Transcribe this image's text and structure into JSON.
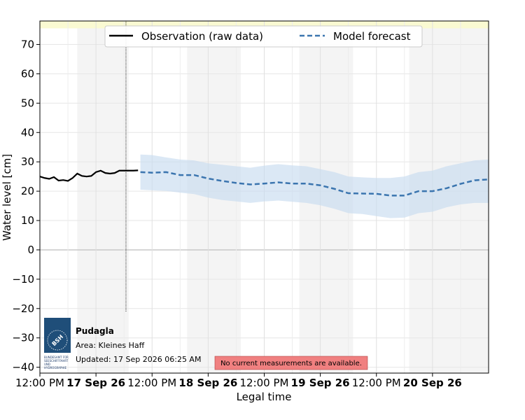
{
  "chart_data": {
    "type": "line",
    "xlabel": "Legal time",
    "ylabel": "Water level [cm]",
    "ylim": [
      -42,
      78
    ],
    "xlim": [
      "2026-09-16 12:00",
      "2026-09-20 12:00"
    ],
    "yticks": [
      -40,
      -30,
      -20,
      -10,
      0,
      10,
      20,
      30,
      40,
      50,
      60,
      70
    ],
    "xticks": [
      {
        "t": "2026-09-16 12:00",
        "label": "12:00 PM",
        "bold": false
      },
      {
        "t": "2026-09-17 00:00",
        "label": "17 Sep 26",
        "bold": true
      },
      {
        "t": "2026-09-17 12:00",
        "label": "12:00 PM",
        "bold": false
      },
      {
        "t": "2026-09-18 00:00",
        "label": "18 Sep 26",
        "bold": true
      },
      {
        "t": "2026-09-18 12:00",
        "label": "12:00 PM",
        "bold": false
      },
      {
        "t": "2026-09-19 00:00",
        "label": "19 Sep 26",
        "bold": true
      },
      {
        "t": "2026-09-19 12:00",
        "label": "12:00 PM",
        "bold": false
      },
      {
        "t": "2026-09-20 00:00",
        "label": "20 Sep 26",
        "bold": true
      }
    ],
    "minor_grid": [
      "2026-09-16 18:00",
      "2026-09-17 06:00",
      "2026-09-17 18:00",
      "2026-09-18 06:00",
      "2026-09-18 18:00",
      "2026-09-19 06:00",
      "2026-09-19 18:00",
      "2026-09-20 06:00"
    ],
    "night_bands": [
      {
        "start": "2026-09-16 12:00",
        "end": "2026-09-16 20:00",
        "shade": "#ffffff"
      },
      {
        "start": "2026-09-16 20:00",
        "end": "2026-09-17 07:00",
        "shade": "#f4f4f4"
      },
      {
        "start": "2026-09-17 19:30",
        "end": "2026-09-18 07:00",
        "shade": "#f4f4f4"
      },
      {
        "start": "2026-09-18 19:30",
        "end": "2026-09-19 07:00",
        "shade": "#f4f4f4"
      },
      {
        "start": "2026-09-19 19:00",
        "end": "2026-09-20 12:00",
        "shade": "#f4f4f4"
      }
    ],
    "top_band": {
      "y_from": 75.5,
      "y_to": 78,
      "color": "#fafad2"
    },
    "now_marker": "2026-09-17 06:25",
    "grid": true,
    "legend_position": "top-center",
    "series": [
      {
        "name": "Observation (raw data)",
        "style": "solid",
        "color": "#000000",
        "points": [
          [
            "2026-09-16 12:00",
            25
          ],
          [
            "2026-09-16 13:00",
            24.5
          ],
          [
            "2026-09-16 14:00",
            24.2
          ],
          [
            "2026-09-16 15:00",
            24.8
          ],
          [
            "2026-09-16 16:00",
            23.6
          ],
          [
            "2026-09-16 17:00",
            23.8
          ],
          [
            "2026-09-16 18:00",
            23.5
          ],
          [
            "2026-09-16 19:00",
            24.5
          ],
          [
            "2026-09-16 20:00",
            26
          ],
          [
            "2026-09-16 21:00",
            25.2
          ],
          [
            "2026-09-16 22:00",
            25
          ],
          [
            "2026-09-16 23:00",
            25.2
          ],
          [
            "2026-09-17 00:00",
            26.5
          ],
          [
            "2026-09-17 01:00",
            27
          ],
          [
            "2026-09-17 02:00",
            26.2
          ],
          [
            "2026-09-17 03:00",
            26
          ],
          [
            "2026-09-17 04:00",
            26.2
          ],
          [
            "2026-09-17 05:00",
            27
          ],
          [
            "2026-09-17 06:00",
            27
          ],
          [
            "2026-09-17 07:00",
            27
          ],
          [
            "2026-09-17 08:00",
            27
          ],
          [
            "2026-09-17 09:00",
            27.1
          ]
        ]
      },
      {
        "name": "Model forecast",
        "style": "dashed",
        "color": "#3b75af",
        "band_color": "#c7dcef",
        "points": [
          [
            "2026-09-17 09:30",
            26.5,
            20.5,
            32.5
          ],
          [
            "2026-09-17 12:00",
            26.3,
            20.3,
            32.3
          ],
          [
            "2026-09-17 15:00",
            26.5,
            20.1,
            31.5
          ],
          [
            "2026-09-17 18:00",
            25.5,
            19.5,
            30.8
          ],
          [
            "2026-09-17 21:00",
            25.5,
            19,
            30.5
          ],
          [
            "2026-09-18 00:00",
            24.3,
            17.8,
            29.5
          ],
          [
            "2026-09-18 03:00",
            23.5,
            17,
            29
          ],
          [
            "2026-09-18 06:00",
            22.8,
            16.5,
            28.5
          ],
          [
            "2026-09-18 09:00",
            22.3,
            16,
            28
          ],
          [
            "2026-09-18 12:00",
            22.6,
            16.5,
            28.7
          ],
          [
            "2026-09-18 15:00",
            23,
            16.8,
            29.2
          ],
          [
            "2026-09-18 18:00",
            22.6,
            16.4,
            28.8
          ],
          [
            "2026-09-18 21:00",
            22.6,
            16,
            28.5
          ],
          [
            "2026-09-19 00:00",
            22,
            15.2,
            27.5
          ],
          [
            "2026-09-19 03:00",
            20.8,
            14,
            26.5
          ],
          [
            "2026-09-19 06:00",
            19.3,
            12.5,
            25
          ],
          [
            "2026-09-19 09:00",
            19.2,
            12.2,
            24.7
          ],
          [
            "2026-09-19 12:00",
            19.1,
            11.5,
            24.5
          ],
          [
            "2026-09-19 15:00",
            18.5,
            10.8,
            24.5
          ],
          [
            "2026-09-19 18:00",
            18.5,
            11,
            25
          ],
          [
            "2026-09-19 21:00",
            20,
            12.5,
            26.5
          ],
          [
            "2026-09-20 00:00",
            20,
            13,
            27
          ],
          [
            "2026-09-20 03:00",
            21,
            14.5,
            28.5
          ],
          [
            "2026-09-20 06:00",
            22.5,
            15.5,
            29.5
          ],
          [
            "2026-09-20 09:00",
            23.7,
            16,
            30.5
          ],
          [
            "2026-09-20 12:00",
            24,
            16,
            30.8
          ]
        ]
      }
    ]
  },
  "info_box": {
    "station": "Pudagla",
    "area": "Area: Kleines Haff",
    "updated": "Updated: 17 Sep 2026 06:25 AM",
    "logo_text": "BSH",
    "logo_caption": [
      "BUNDESAMT FÜR",
      "SEESCHIFFFAHRT",
      "UND",
      "HYDROGRAPHIE"
    ],
    "logo_color": "#1f4e79"
  },
  "notice": {
    "text": "No current measurements are available.",
    "color": "#f08080"
  }
}
